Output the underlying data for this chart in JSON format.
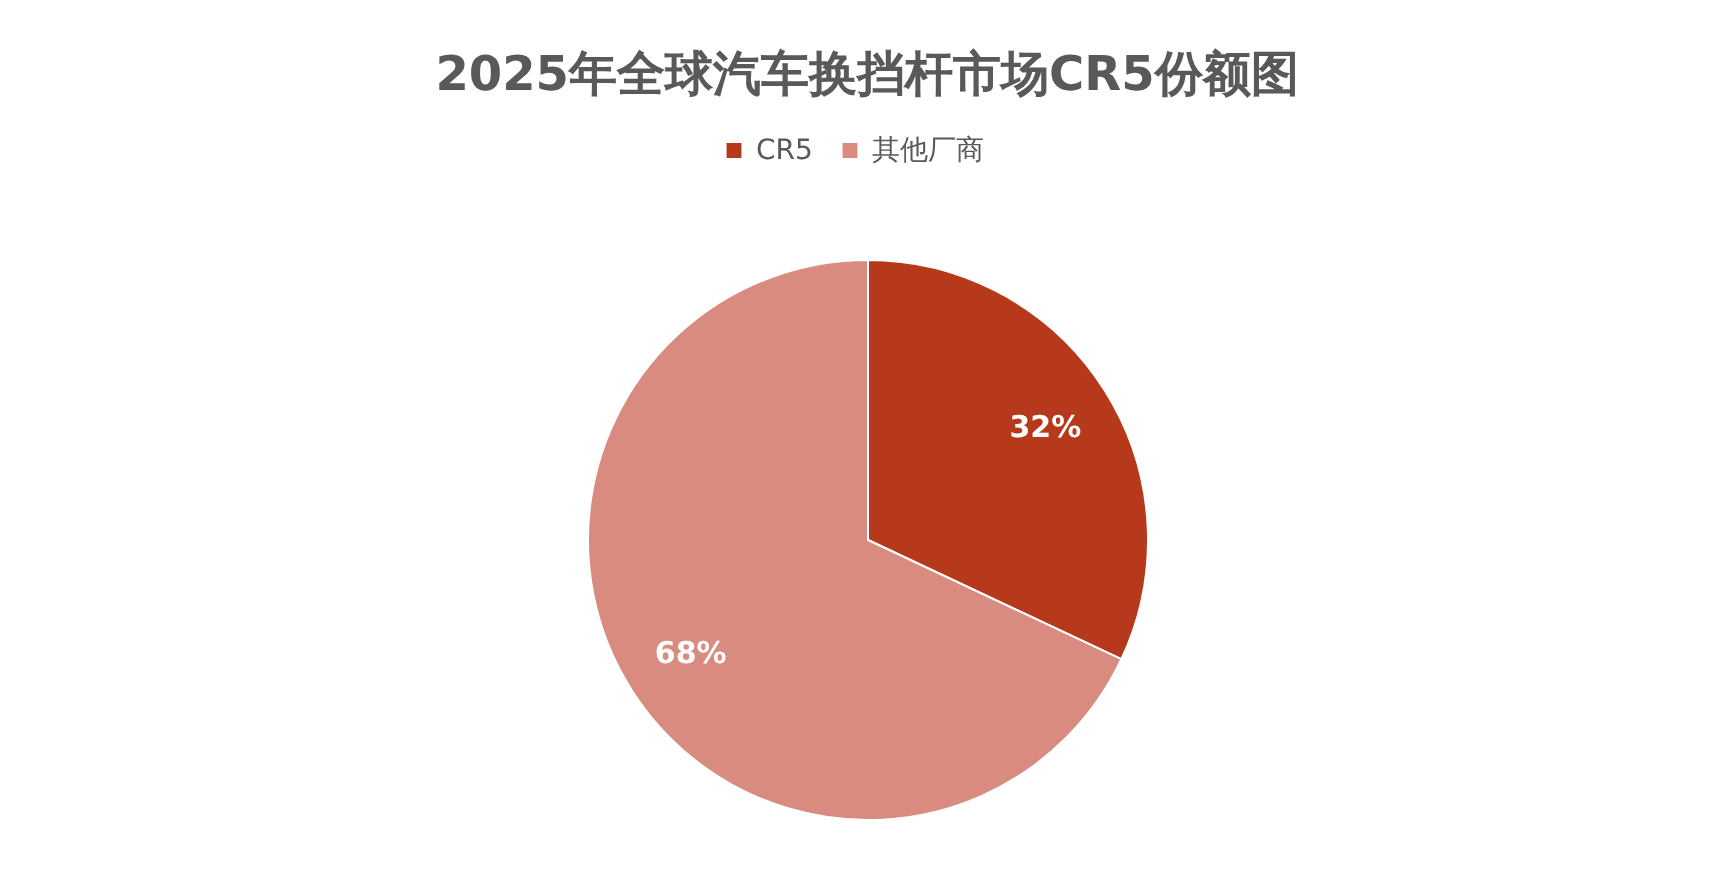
{
  "chart_data": {
    "type": "pie",
    "title": "2025年全球汽车换挡杆市场CR5份额图",
    "categories": [
      "CR5",
      "其他厂商"
    ],
    "values": [
      32,
      68
    ],
    "colors": [
      "#b5391a",
      "#d98b80"
    ],
    "value_labels": [
      "32%",
      "68%"
    ],
    "legend": "top"
  }
}
